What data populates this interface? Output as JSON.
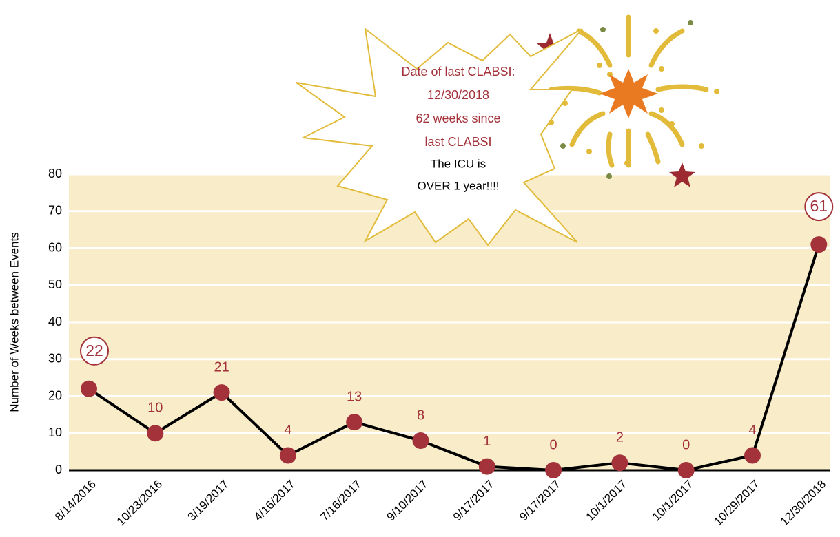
{
  "chart_data": {
    "type": "line",
    "y_label": "Number of Weeks between Events",
    "categories": [
      "8/14/2016",
      "10/23/2016",
      "3/19/2017",
      "4/16/2017",
      "7/16/2017",
      "9/10/2017",
      "9/17/2017",
      "9/17/2017",
      "10/1/2017",
      "10/1/2017",
      "10/29/2017",
      "12/30/2018"
    ],
    "series": [
      {
        "color": "#000000",
        "marker_color": "#a3323a",
        "values": [
          22,
          10,
          21,
          4,
          13,
          8,
          1,
          0,
          2,
          0,
          4,
          61
        ]
      }
    ],
    "circled_points": [
      0,
      11
    ],
    "ylim": [
      0,
      80
    ],
    "yticks": [
      0,
      10,
      20,
      30,
      40,
      50,
      60,
      70,
      80
    ],
    "grid": true,
    "annotation": {
      "highlight": [
        "Date of last CLABSI:",
        "12/30/2018",
        "62 weeks since",
        "last CLABSI"
      ],
      "note": [
        "The ICU is",
        "OVER 1 year!!!!"
      ]
    }
  }
}
